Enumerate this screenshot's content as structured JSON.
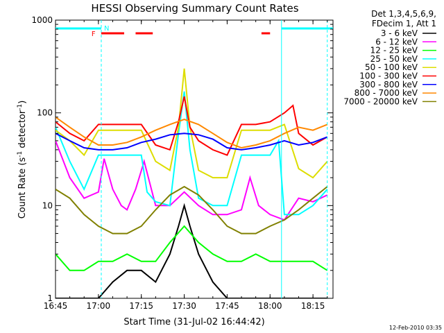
{
  "chart_data": {
    "type": "line",
    "title": "HESSI Observing Summary Count Rates",
    "xlabel": "Start Time (31-Jul-02 16:44:42)",
    "ylabel_parts": [
      "Count Rate (s",
      "-1",
      " detector",
      "-1",
      ")"
    ],
    "x_unit": "minutes",
    "xlim": [
      "16:45",
      "18:22"
    ],
    "ylim": [
      1,
      1000
    ],
    "yscale": "log",
    "grid": false,
    "x_ticks": [
      "16:45",
      "17:00",
      "17:15",
      "17:30",
      "17:45",
      "18:00",
      "18:15"
    ],
    "y_ticks": [
      "1",
      "10",
      "100",
      "1000"
    ],
    "legend_position": "right, outside plot",
    "legend_header": [
      "Det 1,3,4,5,6,9,",
      "FDecim 1, Att 1"
    ],
    "series": [
      {
        "name": "3 - 6 keV",
        "color": "#000000",
        "x": [
          "16:45",
          "16:50",
          "16:55",
          "17:00",
          "17:05",
          "17:10",
          "17:15",
          "17:20",
          "17:25",
          "17:28",
          "17:30",
          "17:32",
          "17:35",
          "17:40",
          "17:45",
          "17:50",
          "17:55",
          "18:00",
          "18:05",
          "18:10",
          "18:15",
          "18:20"
        ],
        "y": [
          1,
          1,
          1,
          1,
          1.5,
          2,
          2,
          1.5,
          3,
          6,
          10,
          6,
          3,
          1.5,
          1,
          1,
          1,
          1,
          1,
          1,
          1,
          1
        ]
      },
      {
        "name": "6 - 12 keV",
        "color": "#ff00ff",
        "x": [
          "16:45",
          "16:50",
          "16:55",
          "17:00",
          "17:02",
          "17:05",
          "17:08",
          "17:10",
          "17:13",
          "17:16",
          "17:20",
          "17:25",
          "17:30",
          "17:35",
          "17:40",
          "17:45",
          "17:50",
          "17:53",
          "17:56",
          "18:00",
          "18:05",
          "18:10",
          "18:15",
          "18:20"
        ],
        "y": [
          50,
          20,
          12,
          14,
          32,
          15,
          10,
          9,
          15,
          30,
          10,
          10,
          14,
          10,
          8,
          8,
          9,
          20,
          10,
          8,
          7,
          12,
          11,
          13
        ]
      },
      {
        "name": "12 - 25 keV",
        "color": "#00ff00",
        "x": [
          "16:45",
          "16:50",
          "16:55",
          "17:00",
          "17:05",
          "17:10",
          "17:15",
          "17:20",
          "17:25",
          "17:30",
          "17:35",
          "17:40",
          "17:45",
          "17:50",
          "17:55",
          "18:00",
          "18:05",
          "18:10",
          "18:15",
          "18:20"
        ],
        "y": [
          3,
          2,
          2,
          2.5,
          2.5,
          3,
          2.5,
          2.5,
          4,
          6,
          4,
          3,
          2.5,
          2.5,
          3,
          2.5,
          2.5,
          2.5,
          2.5,
          2
        ]
      },
      {
        "name": "25 - 50 keV",
        "color": "#00ffff",
        "x": [
          "16:45",
          "16:50",
          "16:55",
          "17:00",
          "17:05",
          "17:10",
          "17:15",
          "17:17",
          "17:20",
          "17:25",
          "17:28",
          "17:30",
          "17:32",
          "17:35",
          "17:40",
          "17:45",
          "17:50",
          "17:55",
          "18:00",
          "18:03",
          "18:05",
          "18:10",
          "18:15",
          "18:20"
        ],
        "y": [
          70,
          30,
          15,
          35,
          35,
          35,
          35,
          14,
          11,
          10,
          60,
          170,
          40,
          12,
          10,
          10,
          35,
          35,
          35,
          50,
          8,
          8,
          10,
          15
        ]
      },
      {
        "name": "50 - 100 keV",
        "color": "#dddd00",
        "x": [
          "16:45",
          "16:50",
          "16:55",
          "17:00",
          "17:05",
          "17:10",
          "17:15",
          "17:20",
          "17:25",
          "17:28",
          "17:30",
          "17:32",
          "17:35",
          "17:40",
          "17:45",
          "17:50",
          "17:55",
          "18:00",
          "18:05",
          "18:10",
          "18:15",
          "18:20"
        ],
        "y": [
          65,
          50,
          35,
          65,
          65,
          65,
          65,
          30,
          24,
          70,
          300,
          70,
          24,
          20,
          20,
          65,
          65,
          65,
          75,
          25,
          20,
          30
        ]
      },
      {
        "name": "100 - 300 keV",
        "color": "#ff0000",
        "x": [
          "16:45",
          "16:50",
          "16:55",
          "17:00",
          "17:05",
          "17:10",
          "17:15",
          "17:20",
          "17:25",
          "17:28",
          "17:30",
          "17:32",
          "17:35",
          "17:40",
          "17:45",
          "17:50",
          "17:55",
          "18:00",
          "18:05",
          "18:08",
          "18:10",
          "18:15",
          "18:20"
        ],
        "y": [
          80,
          60,
          50,
          75,
          75,
          75,
          75,
          45,
          40,
          80,
          150,
          70,
          50,
          40,
          35,
          75,
          75,
          80,
          100,
          120,
          60,
          45,
          55
        ]
      },
      {
        "name": "300 - 800 keV",
        "color": "#0000ff",
        "x": [
          "16:45",
          "16:50",
          "16:55",
          "17:00",
          "17:05",
          "17:10",
          "17:15",
          "17:20",
          "17:25",
          "17:30",
          "17:35",
          "17:40",
          "17:45",
          "17:50",
          "17:55",
          "18:00",
          "18:05",
          "18:10",
          "18:15",
          "18:20"
        ],
        "y": [
          60,
          50,
          42,
          40,
          40,
          42,
          48,
          52,
          58,
          60,
          58,
          52,
          42,
          40,
          42,
          45,
          50,
          45,
          48,
          55
        ]
      },
      {
        "name": "800 - 7000 keV",
        "color": "#ff8800",
        "x": [
          "16:45",
          "16:50",
          "16:55",
          "17:00",
          "17:05",
          "17:10",
          "17:15",
          "17:20",
          "17:25",
          "17:30",
          "17:35",
          "17:40",
          "17:45",
          "17:50",
          "17:55",
          "18:00",
          "18:05",
          "18:10",
          "18:15",
          "18:20"
        ],
        "y": [
          90,
          70,
          55,
          45,
          45,
          48,
          55,
          65,
          75,
          85,
          75,
          60,
          48,
          42,
          45,
          50,
          60,
          70,
          65,
          75
        ]
      },
      {
        "name": "7000 - 20000 keV",
        "color": "#808000",
        "x": [
          "16:45",
          "16:50",
          "16:55",
          "17:00",
          "17:05",
          "17:10",
          "17:15",
          "17:20",
          "17:25",
          "17:30",
          "17:35",
          "17:40",
          "17:45",
          "17:50",
          "17:55",
          "18:00",
          "18:05",
          "18:10",
          "18:15",
          "18:20"
        ],
        "y": [
          15,
          12,
          8,
          6,
          5,
          5,
          6,
          9,
          13,
          16,
          13,
          9,
          6,
          5,
          5,
          6,
          7,
          9,
          12,
          16
        ]
      }
    ],
    "annotations": [
      {
        "text": "F",
        "color": "#ff0000",
        "x": "17:00"
      },
      {
        "text": "N",
        "color": "#00ffff",
        "x": "17:01"
      }
    ],
    "attenuator_bars": [
      {
        "label": "N",
        "color": "#00ffff",
        "intervals": [
          [
            "16:45",
            "17:01"
          ],
          [
            "18:04",
            "18:22"
          ]
        ]
      },
      {
        "label": "F",
        "color": "#ff0000",
        "intervals": [
          [
            "17:01",
            "17:09"
          ],
          [
            "17:13",
            "17:19"
          ],
          [
            "17:57",
            "18:00"
          ]
        ]
      }
    ],
    "vertical_markers": [
      {
        "x": "17:01",
        "color": "#00ffff",
        "style": "dashed"
      },
      {
        "x": "18:04",
        "color": "#00ffff",
        "style": "solid"
      },
      {
        "x": "18:20",
        "color": "#00ffff",
        "style": "dashed"
      }
    ]
  },
  "footer": {
    "timestamp": "12-Feb-2010 03:35"
  }
}
